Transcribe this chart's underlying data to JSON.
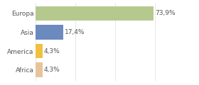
{
  "categories": [
    "Africa",
    "America",
    "Asia",
    "Europa"
  ],
  "values": [
    4.3,
    4.3,
    17.4,
    73.9
  ],
  "labels": [
    "4,3%",
    "4,3%",
    "17,4%",
    "73,9%"
  ],
  "bar_colors": [
    "#e8c49a",
    "#f0c040",
    "#6b8bbf",
    "#b5c98e"
  ],
  "background_color": "#ffffff",
  "xlim": [
    0,
    100
  ],
  "label_fontsize": 6.5,
  "tick_fontsize": 6.5,
  "grid_color": "#dddddd",
  "grid_positions": [
    0,
    25,
    50,
    75,
    100
  ],
  "bar_height": 0.78,
  "text_color": "#555555"
}
